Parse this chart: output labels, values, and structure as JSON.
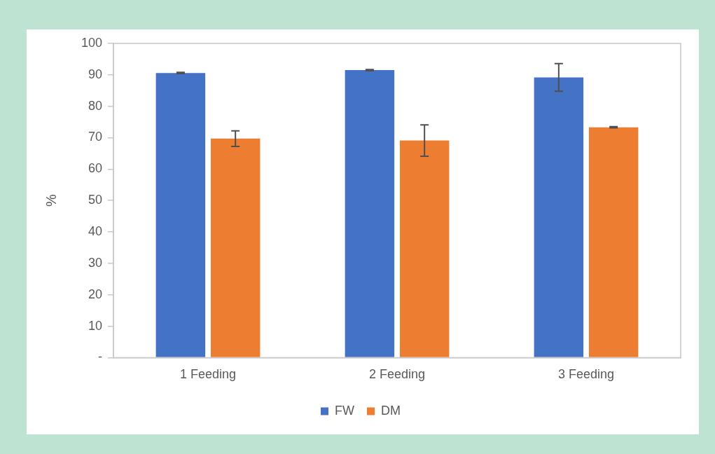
{
  "chart_data": {
    "type": "bar",
    "ylabel": "%",
    "categories": [
      "1 Feeding",
      "2 Feeding",
      "3 Feeding"
    ],
    "series": [
      {
        "name": "FW",
        "color": "#4472c4",
        "values": [
          90.6,
          91.5,
          89.2
        ],
        "errors": [
          0.2,
          0.2,
          4.4
        ]
      },
      {
        "name": "DM",
        "color": "#ed7d31",
        "values": [
          69.7,
          69.1,
          73.3
        ],
        "errors": [
          2.5,
          5,
          0.2
        ]
      }
    ],
    "ylim": [
      0,
      100
    ],
    "yticks": [
      {
        "value": 0,
        "label": "-"
      },
      10,
      20,
      30,
      40,
      50,
      60,
      70,
      80,
      90,
      100
    ],
    "grid": false,
    "legend": "bottom"
  }
}
